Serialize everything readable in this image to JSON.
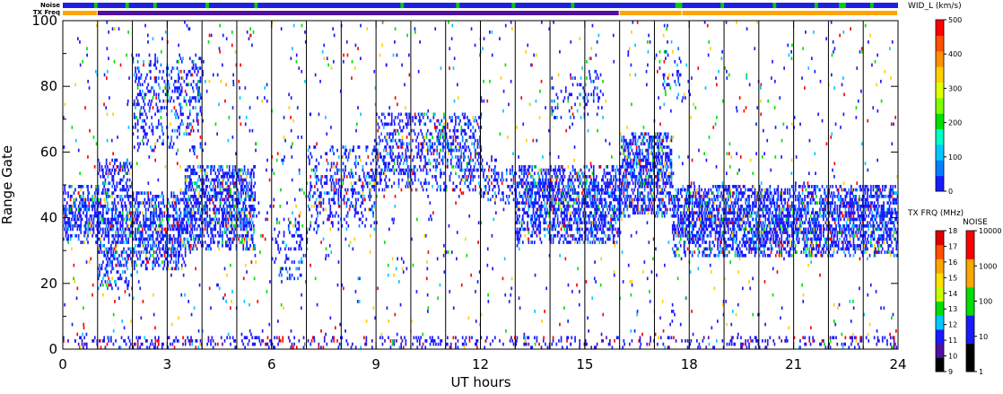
{
  "chart_data": {
    "type": "scatter",
    "xlabel": "UT hours",
    "ylabel": "Range Gate",
    "xlim": [
      0,
      24
    ],
    "ylim": [
      0,
      100
    ],
    "x_ticks": [
      0,
      3,
      6,
      9,
      12,
      15,
      18,
      21,
      24
    ],
    "x_tick_labels": [
      "0",
      "3",
      "6",
      "9",
      "12",
      "15",
      "18",
      "21",
      "24"
    ],
    "y_ticks": [
      0,
      20,
      40,
      60,
      80,
      100
    ],
    "y_tick_labels": [
      "0",
      "20",
      "40",
      "60",
      "80",
      "100"
    ],
    "scan_boundaries_ut": [
      1,
      2,
      3,
      4,
      5,
      6,
      7,
      8,
      9,
      10,
      11,
      12,
      13,
      14,
      15,
      16,
      17,
      18,
      19,
      20,
      21,
      22,
      23
    ],
    "strip_labels": {
      "noise": "Noise",
      "txfreq": "TX Freq"
    },
    "noise_strip": {
      "base_color": "#2020e0",
      "green_segments_ut": [
        [
          0.9,
          1.0
        ],
        [
          1.8,
          1.9
        ],
        [
          2.6,
          2.7
        ],
        [
          4.1,
          4.2
        ],
        [
          5.5,
          5.6
        ],
        [
          9.7,
          9.8
        ],
        [
          11.3,
          11.4
        ],
        [
          12.9,
          13.0
        ],
        [
          14.6,
          14.7
        ],
        [
          17.6,
          17.8
        ],
        [
          18.9,
          19.0
        ],
        [
          20.4,
          20.5
        ],
        [
          21.6,
          21.7
        ],
        [
          22.3,
          22.5
        ],
        [
          23.2,
          23.3
        ]
      ]
    },
    "txfreq_strip": {
      "segments": [
        {
          "start": 0,
          "end": 1.0,
          "color": "#ffa500"
        },
        {
          "start": 1.0,
          "end": 16.0,
          "color": "#5010a0"
        },
        {
          "start": 16.0,
          "end": 17.8,
          "color": "#ffa500"
        },
        {
          "start": 17.8,
          "end": 24,
          "color": "#ffa500"
        }
      ]
    },
    "series": [
      {
        "band": "mid",
        "ut_start": 0.0,
        "ut_end": 1.0,
        "gate_low": 32,
        "gate_high": 50,
        "density": 0.55
      },
      {
        "band": "mid",
        "ut_start": 1.0,
        "ut_end": 2.0,
        "gate_low": 18,
        "gate_high": 58,
        "density": 0.45
      },
      {
        "band": "mid",
        "ut_start": 2.0,
        "ut_end": 3.5,
        "gate_low": 24,
        "gate_high": 48,
        "density": 0.55
      },
      {
        "band": "mid",
        "ut_start": 3.5,
        "ut_end": 5.5,
        "gate_low": 30,
        "gate_high": 56,
        "density": 0.55
      },
      {
        "band": "upper",
        "ut_start": 2.0,
        "ut_end": 4.0,
        "gate_low": 60,
        "gate_high": 90,
        "density": 0.25
      },
      {
        "band": "mid",
        "ut_start": 6.0,
        "ut_end": 7.0,
        "gate_low": 20,
        "gate_high": 40,
        "density": 0.18
      },
      {
        "band": "mid",
        "ut_start": 7.0,
        "ut_end": 9.0,
        "gate_low": 36,
        "gate_high": 62,
        "density": 0.25
      },
      {
        "band": "mid",
        "ut_start": 9.0,
        "ut_end": 12.0,
        "gate_low": 48,
        "gate_high": 72,
        "density": 0.35
      },
      {
        "band": "mid",
        "ut_start": 12.0,
        "ut_end": 13.0,
        "gate_low": 44,
        "gate_high": 58,
        "density": 0.25
      },
      {
        "band": "mid",
        "ut_start": 13.0,
        "ut_end": 16.0,
        "gate_low": 32,
        "gate_high": 56,
        "density": 0.55
      },
      {
        "band": "mid",
        "ut_start": 16.0,
        "ut_end": 17.5,
        "gate_low": 40,
        "gate_high": 66,
        "density": 0.6
      },
      {
        "band": "mid",
        "ut_start": 17.5,
        "ut_end": 24.0,
        "gate_low": 28,
        "gate_high": 50,
        "density": 0.6
      },
      {
        "band": "ground",
        "ut_start": 0.0,
        "ut_end": 24.0,
        "gate_low": 0,
        "gate_high": 4,
        "density": 0.2
      },
      {
        "band": "upper",
        "ut_start": 14.0,
        "ut_end": 15.5,
        "gate_low": 70,
        "gate_high": 85,
        "density": 0.12
      },
      {
        "band": "upper",
        "ut_start": 17.0,
        "ut_end": 18.0,
        "gate_low": 76,
        "gate_high": 92,
        "density": 0.12
      }
    ],
    "random_echoes_per_hour": 60
  },
  "colorbars": {
    "velocity": {
      "title": "WID_L (km/s)",
      "ticks": [
        "0",
        "100",
        "200",
        "300",
        "400",
        "500"
      ],
      "colors": [
        "#1a1aff",
        "#0080ff",
        "#00c8ff",
        "#00ffc8",
        "#00e000",
        "#80ff00",
        "#e0ff00",
        "#ffd000",
        "#ff9000",
        "#ff5000",
        "#ff0000"
      ]
    },
    "txfreq": {
      "title": "TX FRQ (MHz)",
      "ticks": [
        "9",
        "10",
        "11",
        "12",
        "13",
        "14",
        "15",
        "16",
        "17",
        "18"
      ],
      "colors": [
        "#000000",
        "#5010a0",
        "#1a1aff",
        "#00c8ff",
        "#00e000",
        "#c8ff00",
        "#ffe000",
        "#ffa500",
        "#ff5000",
        "#e00000"
      ]
    },
    "noise": {
      "title": "NOISE",
      "ticks": [
        "1",
        "10",
        "100",
        "1000",
        "10000"
      ],
      "colors": [
        "#000000",
        "#1a1aff",
        "#00e000",
        "#ffa500",
        "#ff0000"
      ]
    }
  }
}
